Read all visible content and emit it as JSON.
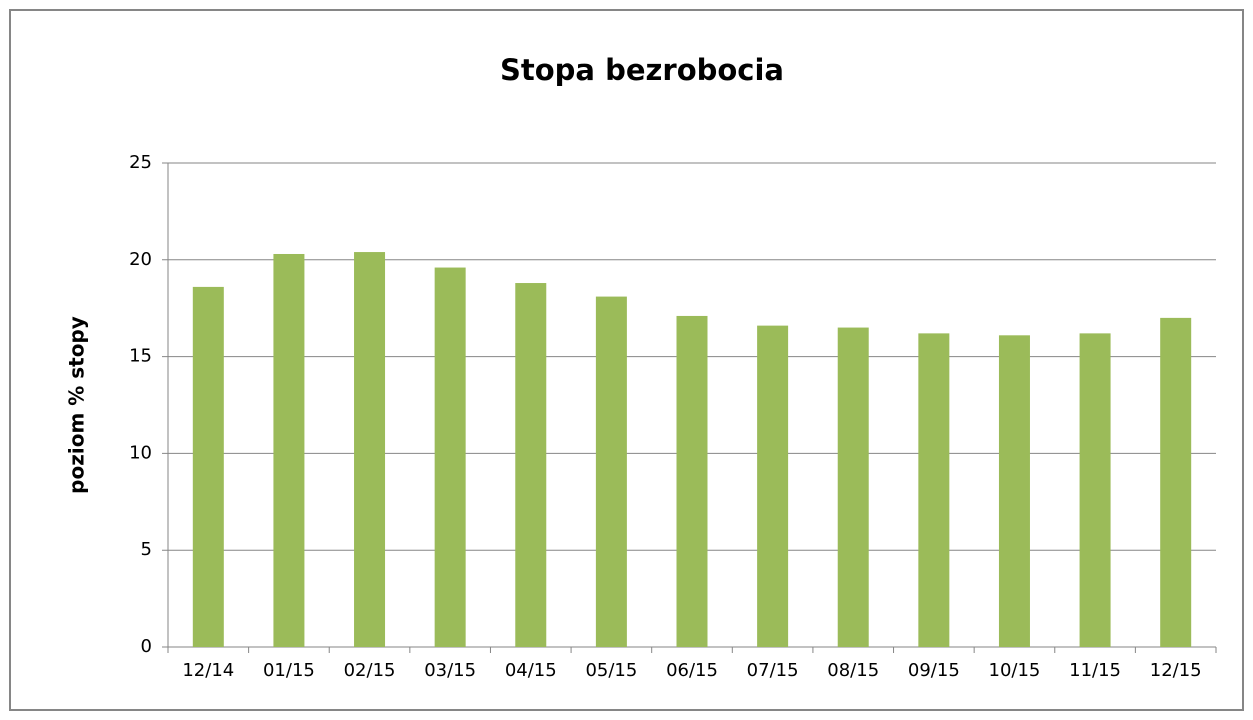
{
  "chart_data": {
    "type": "bar",
    "title": "Stopa bezrobocia",
    "y_label": "poziom % stopy",
    "categories": [
      "12/14",
      "01/15",
      "02/15",
      "03/15",
      "04/15",
      "05/15",
      "06/15",
      "07/15",
      "08/15",
      "09/15",
      "10/15",
      "11/15",
      "12/15"
    ],
    "values": [
      18.6,
      20.3,
      20.4,
      19.6,
      18.8,
      18.1,
      17.1,
      16.6,
      16.5,
      16.2,
      16.1,
      16.2,
      17.0
    ],
    "color": "#9bbb59",
    "ylim": [
      0,
      25
    ],
    "yticks": [
      0,
      5,
      10,
      15,
      20,
      25
    ],
    "grid": true
  }
}
